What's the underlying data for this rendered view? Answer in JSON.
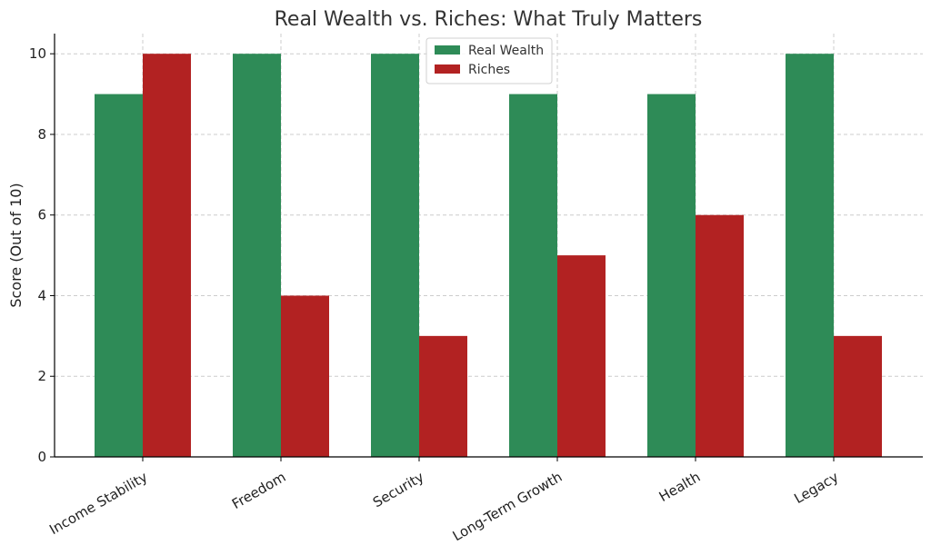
{
  "chart_data": {
    "type": "bar",
    "title": "Real Wealth vs. Riches: What Truly Matters",
    "xlabel": "",
    "ylabel": "Score (Out of 10)",
    "categories": [
      "Income Stability",
      "Freedom",
      "Security",
      "Long-Term Growth",
      "Health",
      "Legacy"
    ],
    "series": [
      {
        "name": "Real Wealth",
        "color": "#2e8b57",
        "values": [
          9,
          10,
          10,
          9,
          9,
          10
        ]
      },
      {
        "name": "Riches",
        "color": "#b22222",
        "values": [
          10,
          4,
          3,
          5,
          6,
          3
        ]
      }
    ],
    "ylim": [
      0,
      10.5
    ],
    "yticks": [
      0,
      2,
      4,
      6,
      8,
      10
    ],
    "grid": true,
    "legend_position": "top-center"
  }
}
